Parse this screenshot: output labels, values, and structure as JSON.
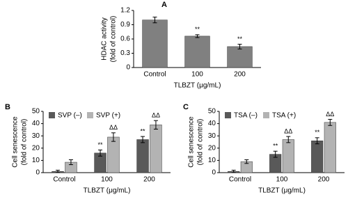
{
  "chart_data": [
    {
      "type": "bar",
      "title": "A",
      "ylabel": [
        "HDAC activity",
        "(fold of control)"
      ],
      "xlabel": "TLBZT (μg/mL)",
      "categories": [
        "Control",
        "100",
        "200"
      ],
      "series": [
        {
          "color": "#808080",
          "values": [
            1.0,
            0.66,
            0.44
          ],
          "errors": [
            0.06,
            0.03,
            0.05
          ],
          "annotations": [
            null,
            "**",
            "**"
          ]
        }
      ],
      "ylim": [
        0,
        1.2
      ],
      "yticks": [
        0,
        0.3,
        0.6,
        0.9,
        1.2
      ]
    },
    {
      "type": "bar",
      "title": "B",
      "ylabel": [
        "Cell senescence",
        "(fold of control)"
      ],
      "xlabel": "TLBZT (μg/mL)",
      "categories": [
        "Control",
        "100",
        "200"
      ],
      "series": [
        {
          "name": "SVP (–)",
          "color": "#595959",
          "values": [
            1,
            16,
            27
          ],
          "errors": [
            1,
            2.5,
            2.5
          ],
          "annotations": [
            null,
            "**",
            "**"
          ]
        },
        {
          "name": "SVP (+)",
          "color": "#b3b3b3",
          "values": [
            8.5,
            29,
            39
          ],
          "errors": [
            2,
            3.5,
            3.5
          ],
          "annotations": [
            null,
            "ΔΔ",
            "ΔΔ"
          ]
        }
      ],
      "ylim": [
        0,
        50
      ],
      "yticks": [
        0,
        10,
        20,
        30,
        40,
        50
      ]
    },
    {
      "type": "bar",
      "title": "C",
      "ylabel": [
        "Cell senescence",
        "(fold of control)"
      ],
      "xlabel": "TLBZT (μg/mL)",
      "categories": [
        "Control",
        "100",
        "200"
      ],
      "series": [
        {
          "name": "TSA (–)",
          "color": "#595959",
          "values": [
            1,
            15,
            26
          ],
          "errors": [
            1,
            2.5,
            2.5
          ],
          "annotations": [
            null,
            "**",
            "**"
          ]
        },
        {
          "name": "TSA (+)",
          "color": "#b3b3b3",
          "values": [
            9,
            27,
            41
          ],
          "errors": [
            1.5,
            2.5,
            2.5
          ],
          "annotations": [
            null,
            "ΔΔ",
            "ΔΔ"
          ]
        }
      ],
      "ylim": [
        0,
        50
      ],
      "yticks": [
        0,
        10,
        20,
        30,
        40,
        50
      ]
    }
  ]
}
